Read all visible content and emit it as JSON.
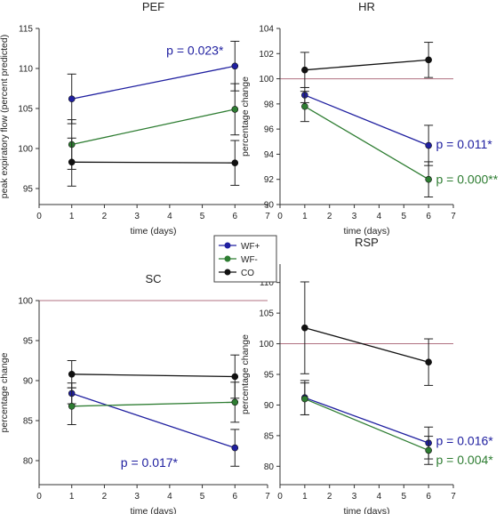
{
  "legend": {
    "placement": "center",
    "entries": [
      {
        "label": "WF+",
        "color": "#2020a0"
      },
      {
        "label": "WF-",
        "color": "#2e7d32"
      },
      {
        "label": "CO",
        "color": "#111111"
      }
    ]
  },
  "colors": {
    "wfplus": "#2020a0",
    "wfminus": "#2e7d32",
    "co": "#111111",
    "reference": "#b07080"
  },
  "chart_data": [
    {
      "type": "line",
      "title": "PEF",
      "xlabel": "time (days)",
      "ylabel": "peak expiratory flow (percent predicted)",
      "xlim": [
        0,
        7
      ],
      "ylim": [
        93,
        115
      ],
      "xticks": [
        "0",
        "1",
        "2",
        "3",
        "4",
        "5",
        "6",
        "7"
      ],
      "yticks": [
        "95",
        "100",
        "105",
        "110",
        "115"
      ],
      "x": [
        1,
        6
      ],
      "reference_line": null,
      "series": [
        {
          "name": "WF+",
          "color": "#2020a0",
          "values": [
            106.2,
            110.3
          ],
          "errors": [
            3.1,
            3.1
          ]
        },
        {
          "name": "WF-",
          "color": "#2e7d32",
          "values": [
            100.5,
            104.9
          ],
          "errors": [
            3.1,
            3.2
          ]
        },
        {
          "name": "CO",
          "color": "#111111",
          "values": [
            98.3,
            98.2
          ],
          "errors": [
            3.0,
            2.8
          ]
        }
      ],
      "annotations": [
        {
          "text": "p = 0.023*",
          "color": "#2020a0",
          "x": 3.9,
          "y": 112.3
        }
      ]
    },
    {
      "type": "line",
      "title": "HR",
      "xlabel": "time (days)",
      "ylabel": "percentage change",
      "xlim": [
        0,
        7
      ],
      "ylim": [
        90,
        104
      ],
      "xticks": [
        "0",
        "1",
        "2",
        "3",
        "4",
        "5",
        "6",
        "7"
      ],
      "yticks": [
        "90",
        "92",
        "94",
        "96",
        "98",
        "100",
        "102",
        "104"
      ],
      "x": [
        1,
        6
      ],
      "reference_line": 100,
      "series": [
        {
          "name": "WF+",
          "color": "#2020a0",
          "values": [
            98.7,
            94.7
          ],
          "errors": [
            0.6,
            1.6
          ]
        },
        {
          "name": "WF-",
          "color": "#2e7d32",
          "values": [
            97.8,
            92.0
          ],
          "errors": [
            1.2,
            1.4
          ]
        },
        {
          "name": "CO",
          "color": "#111111",
          "values": [
            100.7,
            101.5
          ],
          "errors": [
            1.4,
            1.4
          ]
        }
      ],
      "annotations": [
        {
          "text": "p = 0.011*",
          "color": "#2020a0",
          "x": 6.3,
          "y": 94.8
        },
        {
          "text": "p = 0.000**",
          "color": "#2e7d32",
          "x": 6.3,
          "y": 92.0
        }
      ]
    },
    {
      "type": "line",
      "title": "SC",
      "xlabel": "time (days)",
      "ylabel": "percentage change",
      "xlim": [
        0,
        7
      ],
      "ylim": [
        77,
        100
      ],
      "xticks": [
        "0",
        "1",
        "2",
        "3",
        "4",
        "5",
        "6",
        "7"
      ],
      "yticks": [
        "80",
        "85",
        "90",
        "95",
        "100"
      ],
      "x": [
        1,
        6
      ],
      "reference_line": 100,
      "series": [
        {
          "name": "WF+",
          "color": "#2020a0",
          "values": [
            88.4,
            81.6
          ],
          "errors": [
            1.3,
            2.3
          ]
        },
        {
          "name": "WF-",
          "color": "#2e7d32",
          "values": [
            86.8,
            87.3
          ],
          "errors": [
            2.3,
            2.5
          ]
        },
        {
          "name": "CO",
          "color": "#111111",
          "values": [
            90.8,
            90.5
          ],
          "errors": [
            1.7,
            2.7
          ]
        }
      ],
      "annotations": [
        {
          "text": "p = 0.017*",
          "color": "#2020a0",
          "x": 2.5,
          "y": 79.8
        }
      ]
    },
    {
      "type": "line",
      "title": "RSP",
      "xlabel": "time (days)",
      "ylabel": "percentage change",
      "xlim": [
        0,
        7
      ],
      "ylim": [
        77,
        113
      ],
      "xticks": [
        "0",
        "1",
        "2",
        "3",
        "4",
        "5",
        "6",
        "7"
      ],
      "yticks": [
        "80",
        "85",
        "90",
        "95",
        "100",
        "105",
        "110"
      ],
      "x": [
        1,
        6
      ],
      "reference_line": 100,
      "series": [
        {
          "name": "WF+",
          "color": "#2020a0",
          "values": [
            91.2,
            83.8
          ],
          "errors": [
            2.8,
            2.6
          ]
        },
        {
          "name": "WF-",
          "color": "#2e7d32",
          "values": [
            91.0,
            82.6
          ],
          "errors": [
            2.6,
            2.3
          ]
        },
        {
          "name": "CO",
          "color": "#111111",
          "values": [
            102.6,
            97.0
          ],
          "errors": [
            7.5,
            3.8
          ]
        }
      ],
      "annotations": [
        {
          "text": "p = 0.016*",
          "color": "#2020a0",
          "x": 6.3,
          "y": 84.2
        },
        {
          "text": "p = 0.004*",
          "color": "#2e7d32",
          "x": 6.3,
          "y": 81.1
        }
      ]
    }
  ]
}
